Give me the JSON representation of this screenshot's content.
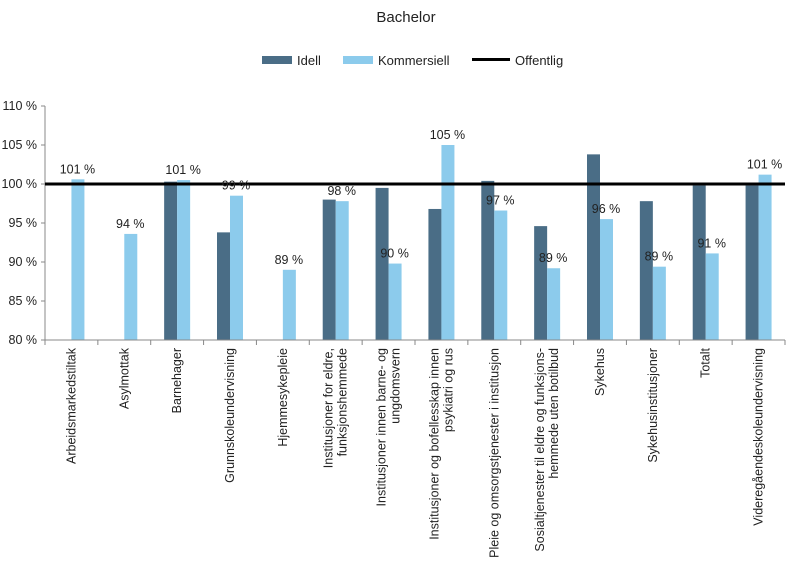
{
  "chart_data": {
    "type": "bar",
    "title": "Bachelor",
    "xlabel": "",
    "ylabel": "",
    "ylim": [
      80,
      110
    ],
    "ytick_step": 5,
    "y_tick_labels": [
      "80 %",
      "85 %",
      "90 %",
      "95 %",
      "100 %",
      "105 %",
      "110 %"
    ],
    "grid": false,
    "legend_position": "top-center",
    "categories": [
      [
        "Arbeidsmarkedstiltak"
      ],
      [
        "Asylmottak"
      ],
      [
        "Barnehager"
      ],
      [
        "Grunnskoleundervisning"
      ],
      [
        "Hjemmesykepleie"
      ],
      [
        "Institusjoner for eldre,",
        "funksjonshemmede"
      ],
      [
        "Institusjoner innen barne- og",
        "ungdomsvern"
      ],
      [
        "Institusjoner og bofellesskap innen",
        "psykiatri og rus"
      ],
      [
        "Pleie og omsorgstjenester i institusjon"
      ],
      [
        "Sosialtjenester til eldre og funksjons-",
        "hemmede uten botilbud"
      ],
      [
        "Sykehus"
      ],
      [
        "Sykehusinstitusjoner"
      ],
      [
        "Totalt"
      ],
      [
        "Videregåendeskoleundervisning"
      ]
    ],
    "series": [
      {
        "name": "Idell",
        "color": "#4a6d86",
        "values": [
          null,
          null,
          100.3,
          93.8,
          null,
          98.0,
          99.5,
          96.8,
          100.4,
          94.6,
          103.8,
          97.8,
          99.8,
          99.8
        ]
      },
      {
        "name": "Kommersiell",
        "color": "#8ccbec",
        "values": [
          100.6,
          93.6,
          100.5,
          98.5,
          89.0,
          97.8,
          89.8,
          105.0,
          96.6,
          89.2,
          95.5,
          89.4,
          91.1,
          101.2
        ]
      }
    ],
    "reference_line": {
      "name": "Offentlig",
      "value": 100,
      "color": "#000000"
    },
    "data_labels": [
      "101 %",
      "94 %",
      "101 %",
      "99 %",
      "89 %",
      "98 %",
      "90 %",
      "105 %",
      "97 %",
      "89 %",
      "96 %",
      "89 %",
      "91 %",
      "101 %"
    ]
  }
}
